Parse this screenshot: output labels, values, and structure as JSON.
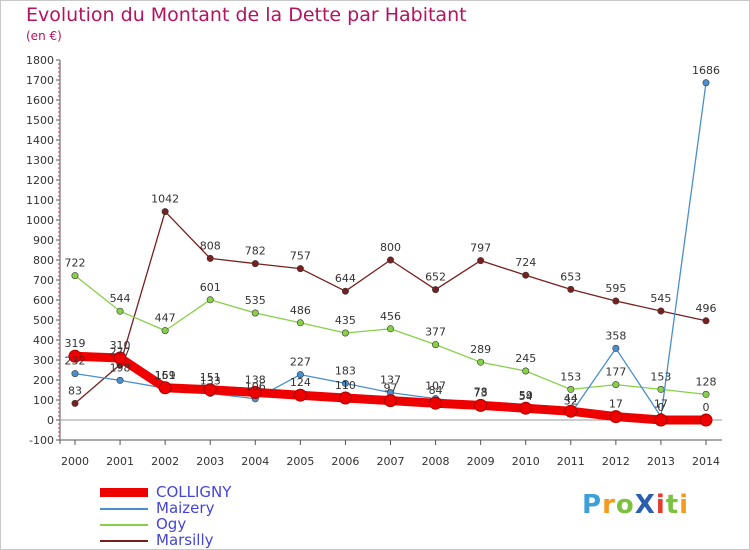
{
  "title": "Evolution du Montant de la Dette par Habitant",
  "subtitle": "(en €)",
  "logo": {
    "text": "ProXiti",
    "letters": [
      "P",
      "r",
      "o",
      "X",
      "i",
      "t",
      "i"
    ],
    "colors": [
      "#3d9fd8",
      "#f59a1d",
      "#7cc242",
      "#2a5fb0",
      "#e8392f",
      "#7cc242",
      "#f59a1d"
    ]
  },
  "chart_data": {
    "type": "line",
    "title": "Evolution du Montant de la Dette par Habitant",
    "ylabel": "(en €)",
    "xlabel": "",
    "x": [
      "2000",
      "2001",
      "2002",
      "2003",
      "2004",
      "2005",
      "2006",
      "2007",
      "2008",
      "2009",
      "2010",
      "2011",
      "2012",
      "2013",
      "2014"
    ],
    "ylim": [
      -100,
      1800
    ],
    "yticks": [
      -100,
      0,
      100,
      200,
      300,
      400,
      500,
      600,
      700,
      800,
      900,
      1000,
      1100,
      1200,
      1300,
      1400,
      1500,
      1600,
      1700,
      1800
    ],
    "grid": false,
    "legend_position": "bottom-left",
    "series": [
      {
        "name": "COLLIGNY",
        "color": "#ee0000",
        "values": [
          319,
          310,
          161,
          151,
          138,
          124,
          110,
          97,
          84,
          73,
          59,
          44,
          17,
          0,
          0
        ],
        "labels": [
          "319",
          "310",
          "161",
          "151",
          "138",
          "124",
          "110",
          "97",
          "84",
          "73",
          "59",
          "44",
          "17",
          "0",
          "0"
        ]
      },
      {
        "name": "Maizery",
        "color": "#4a8fcd",
        "values": [
          232,
          198,
          159,
          133,
          106,
          227,
          183,
          137,
          107,
          78,
          54,
          32,
          358,
          17,
          1686
        ],
        "labels": [
          "232",
          "198",
          "159",
          "133",
          "106",
          "227",
          "183",
          "137",
          "107",
          "78",
          "54",
          "32",
          "358",
          "17",
          "1686"
        ]
      },
      {
        "name": "Ogy",
        "color": "#88d048",
        "values": [
          722,
          544,
          447,
          601,
          535,
          486,
          435,
          456,
          377,
          289,
          245,
          153,
          177,
          153,
          128
        ],
        "labels": [
          "722",
          "544",
          "447",
          "601",
          "535",
          "486",
          "435",
          "456",
          "377",
          "289",
          "245",
          "153",
          "177",
          "153",
          "128"
        ]
      },
      {
        "name": "Marsilly",
        "color": "#7a1f1f",
        "values": [
          83,
          277,
          1042,
          808,
          782,
          757,
          644,
          800,
          652,
          797,
          724,
          653,
          595,
          545,
          496
        ],
        "labels": [
          "83",
          "277",
          "1042",
          "808",
          "782",
          "757",
          "644",
          "800",
          "652",
          "797",
          "724",
          "653",
          "595",
          "545",
          "496"
        ]
      }
    ]
  }
}
